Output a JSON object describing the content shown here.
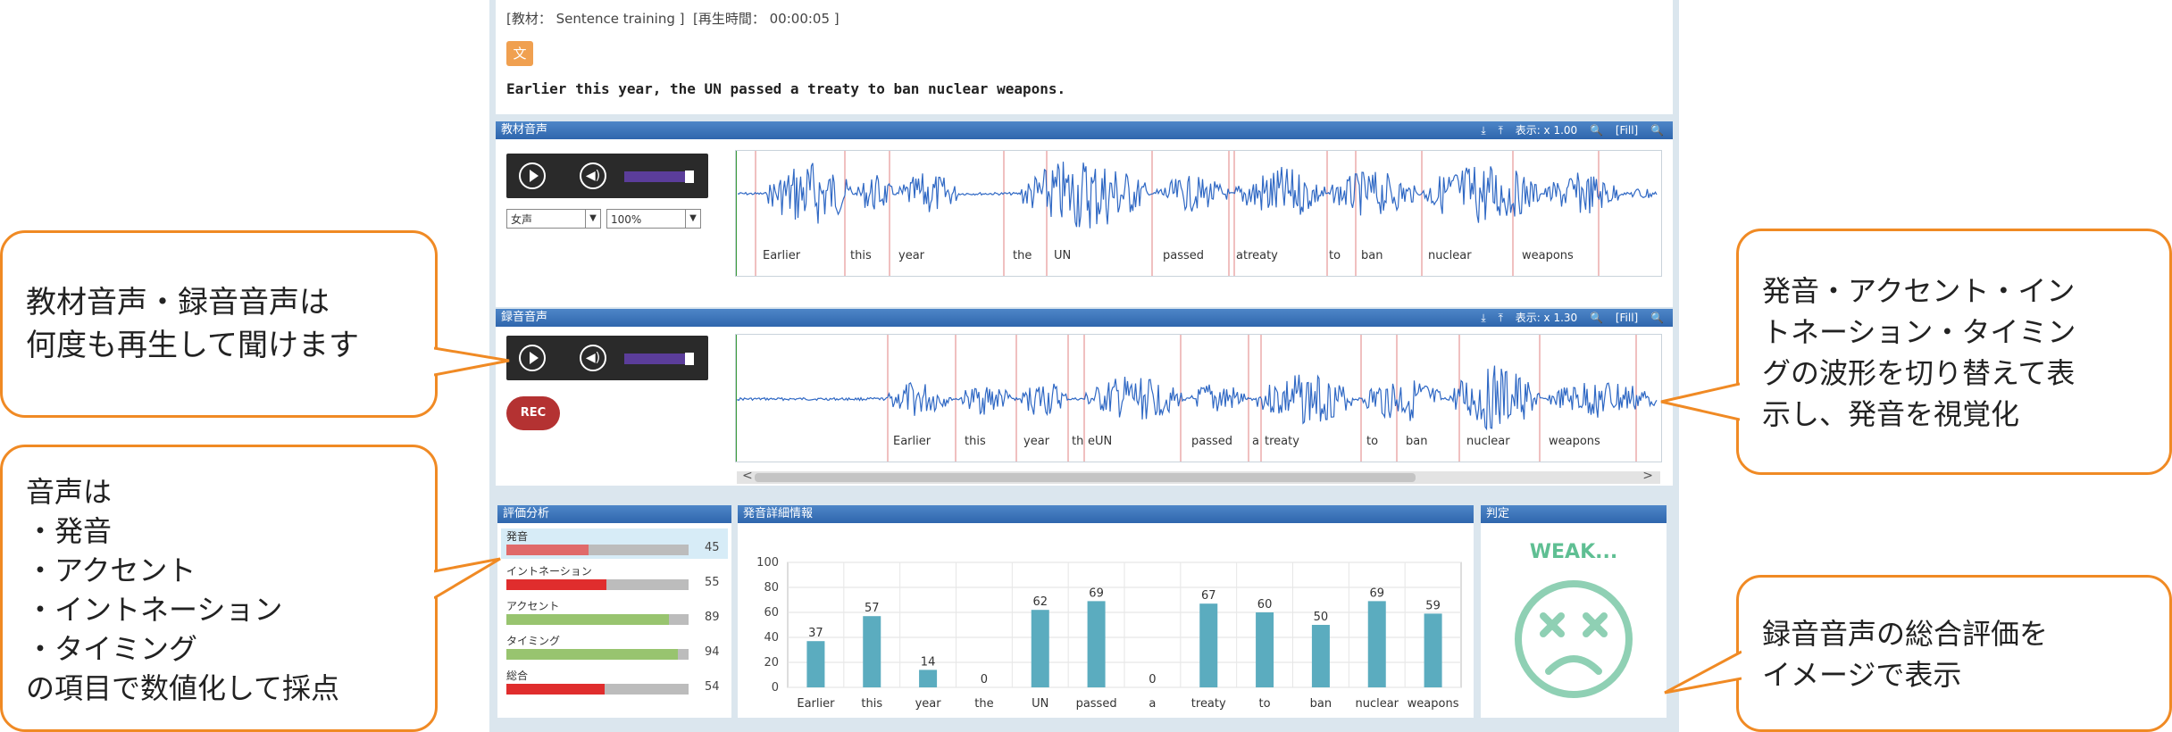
{
  "meta": {
    "material_label": "[教材： Sentence training ]",
    "time_label": "[再生時間： 00:00:05 ]"
  },
  "word_badge": "文",
  "sentence": "Earlier this year, the UN passed a treaty to ban nuclear weapons.",
  "material_panel": {
    "title": "教材音声",
    "zoom": "表示: x 1.00",
    "fill": "[Fill]"
  },
  "recorded_panel": {
    "title": "録音音声",
    "zoom": "表示: x 1.30",
    "fill": "[Fill]"
  },
  "voice_select": "女声",
  "speed_select": "100%",
  "rec_label": "REC",
  "material_words": [
    "Earlier",
    "this",
    "year",
    "the",
    "UN",
    "passed",
    "atreaty",
    "to",
    "ban",
    "nuclear",
    "weapons"
  ],
  "recorded_words": [
    "Earlier",
    "this",
    "year",
    "th",
    "eUN",
    "passed",
    "a",
    "treaty",
    "to",
    "ban",
    "nuclear",
    "weapons"
  ],
  "scroll": {
    "left": "<",
    "right": ">"
  },
  "eval": {
    "title": "評価分析",
    "rows": [
      {
        "label": "発音",
        "value": 45,
        "color": "#e06a6a"
      },
      {
        "label": "イントネーション",
        "value": 55,
        "color": "#e02d2d"
      },
      {
        "label": "アクセント",
        "value": 89,
        "color": "#98c46f"
      },
      {
        "label": "タイミング",
        "value": 94,
        "color": "#98c46f"
      },
      {
        "label": "総合",
        "value": 54,
        "color": "#e02d2d"
      }
    ]
  },
  "detail": {
    "title": "発音詳細情報"
  },
  "judgement": {
    "title": "判定",
    "result": "WEAK..."
  },
  "chart_data": {
    "type": "bar",
    "categories": [
      "Earlier",
      "this",
      "year",
      "the",
      "UN",
      "passed",
      "a",
      "treaty",
      "to",
      "ban",
      "nuclear",
      "weapons"
    ],
    "values": [
      37,
      57,
      14,
      0,
      62,
      69,
      0,
      67,
      60,
      50,
      69,
      59
    ],
    "ylim": [
      0,
      100
    ],
    "yticks": [
      0,
      20,
      40,
      60,
      80,
      100
    ],
    "grid": true,
    "bar_color": "#5bacbf"
  },
  "callouts": {
    "playback": "教材音声・録音音声は\n何度も再生して聞けます",
    "scoring": "音声は\n・発音\n・アクセント\n・イントネーション\n・タイミング\nの項目で数値化して採点",
    "waveform": "発音・アクセント・イン\nトネーション・タイミン\nグの波形を切り替えて表\n示し、発音を視覚化",
    "overall": "録音音声の総合評価を\nイメージで表示"
  }
}
